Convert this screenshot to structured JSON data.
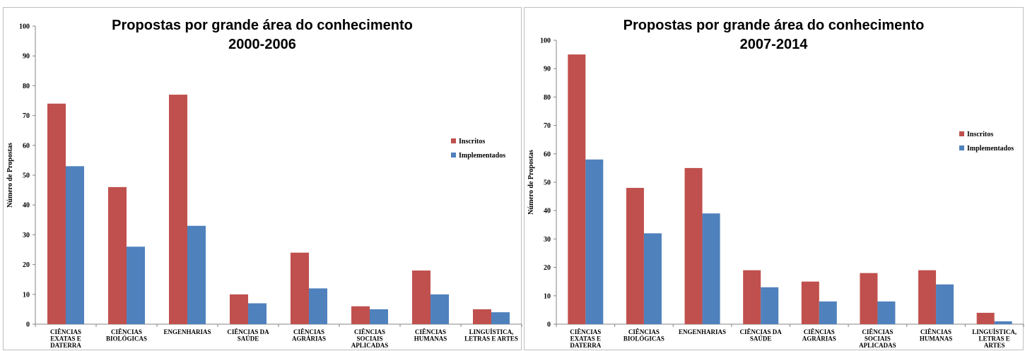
{
  "chart_data": [
    {
      "type": "bar",
      "title": "Propostas por grande área do conhecimento",
      "subtitle": "2000-2006",
      "ylabel": "Número de Propostas",
      "xlabel": "",
      "ylim": [
        0,
        100
      ],
      "yticks": [
        0,
        10,
        20,
        30,
        40,
        50,
        60,
        70,
        80,
        90,
        100
      ],
      "grid": false,
      "legend_position": "right",
      "categories": [
        "CIÊNCIAS EXATAS E DATERRA",
        "CIÊNCIAS BIOLÓGICAS",
        "ENGENHARIAS",
        "CIÊNCIAS DA SAÚDE",
        "CIÊNCIAS AGRÁRIAS",
        "CIÊNCIAS SOCIAIS APLICADAS",
        "CIÊNCIAS HUMANAS",
        "LINGUÍSTICA, LETRAS E ARTES"
      ],
      "category_lines": [
        [
          "CIÊNCIAS",
          "EXATAS E",
          "DATERRA"
        ],
        [
          "CIÊNCIAS",
          "BIOLÓGICAS"
        ],
        [
          "ENGENHARIAS"
        ],
        [
          "CIÊNCIAS DA",
          "SAÚDE"
        ],
        [
          "CIÊNCIAS",
          "AGRÁRIAS"
        ],
        [
          "CIÊNCIAS",
          "SOCIAIS",
          "APLICADAS"
        ],
        [
          "CIÊNCIAS",
          "HUMANAS"
        ],
        [
          "LINGUÍSTICA,",
          "LETRAS E ARTES"
        ]
      ],
      "series": [
        {
          "name": "Inscritos",
          "color": "#c0504d",
          "values": [
            74,
            46,
            77,
            10,
            24,
            6,
            18,
            5
          ]
        },
        {
          "name": "Implementados",
          "color": "#4f81bd",
          "values": [
            53,
            26,
            33,
            7,
            12,
            5,
            10,
            4
          ]
        }
      ]
    },
    {
      "type": "bar",
      "title": "Propostas por grande área do conhecimento",
      "subtitle": "2007-2014",
      "ylabel": "Número de Propostas",
      "xlabel": "",
      "ylim": [
        0,
        100
      ],
      "yticks": [
        0,
        10,
        20,
        30,
        40,
        50,
        60,
        70,
        80,
        90,
        100
      ],
      "grid": false,
      "legend_position": "right",
      "categories": [
        "CIÊNCIAS EXATAS E DATERRA",
        "CIÊNCIAS BIOLÓGICAS",
        "ENGENHARIAS",
        "CIÊNCIAS DA SAÚDE",
        "CIÊNCIAS AGRÁRIAS",
        "CIÊNCIAS SOCIAIS APLICADAS",
        "CIÊNCIAS HUMANAS",
        "LINGUÍSTICA, LETRAS E ARTES"
      ],
      "category_lines": [
        [
          "CIÊNCIAS",
          "EXATAS E",
          "DATERRA"
        ],
        [
          "CIÊNCIAS",
          "BIOLÓGICAS"
        ],
        [
          "ENGENHARIAS"
        ],
        [
          "CIÊNCIAS DA",
          "SAÚDE"
        ],
        [
          "CIÊNCIAS",
          "AGRÁRIAS"
        ],
        [
          "CIÊNCIAS",
          "SOCIAIS",
          "APLICADAS"
        ],
        [
          "CIÊNCIAS",
          "HUMANAS"
        ],
        [
          "LINGUÍSTICA,",
          "LETRAS E",
          "ARTES"
        ]
      ],
      "series": [
        {
          "name": "Inscritos",
          "color": "#c0504d",
          "values": [
            95,
            48,
            55,
            19,
            15,
            18,
            19,
            4
          ]
        },
        {
          "name": "Implementados",
          "color": "#4f81bd",
          "values": [
            58,
            32,
            39,
            13,
            8,
            8,
            14,
            1
          ]
        }
      ]
    }
  ]
}
